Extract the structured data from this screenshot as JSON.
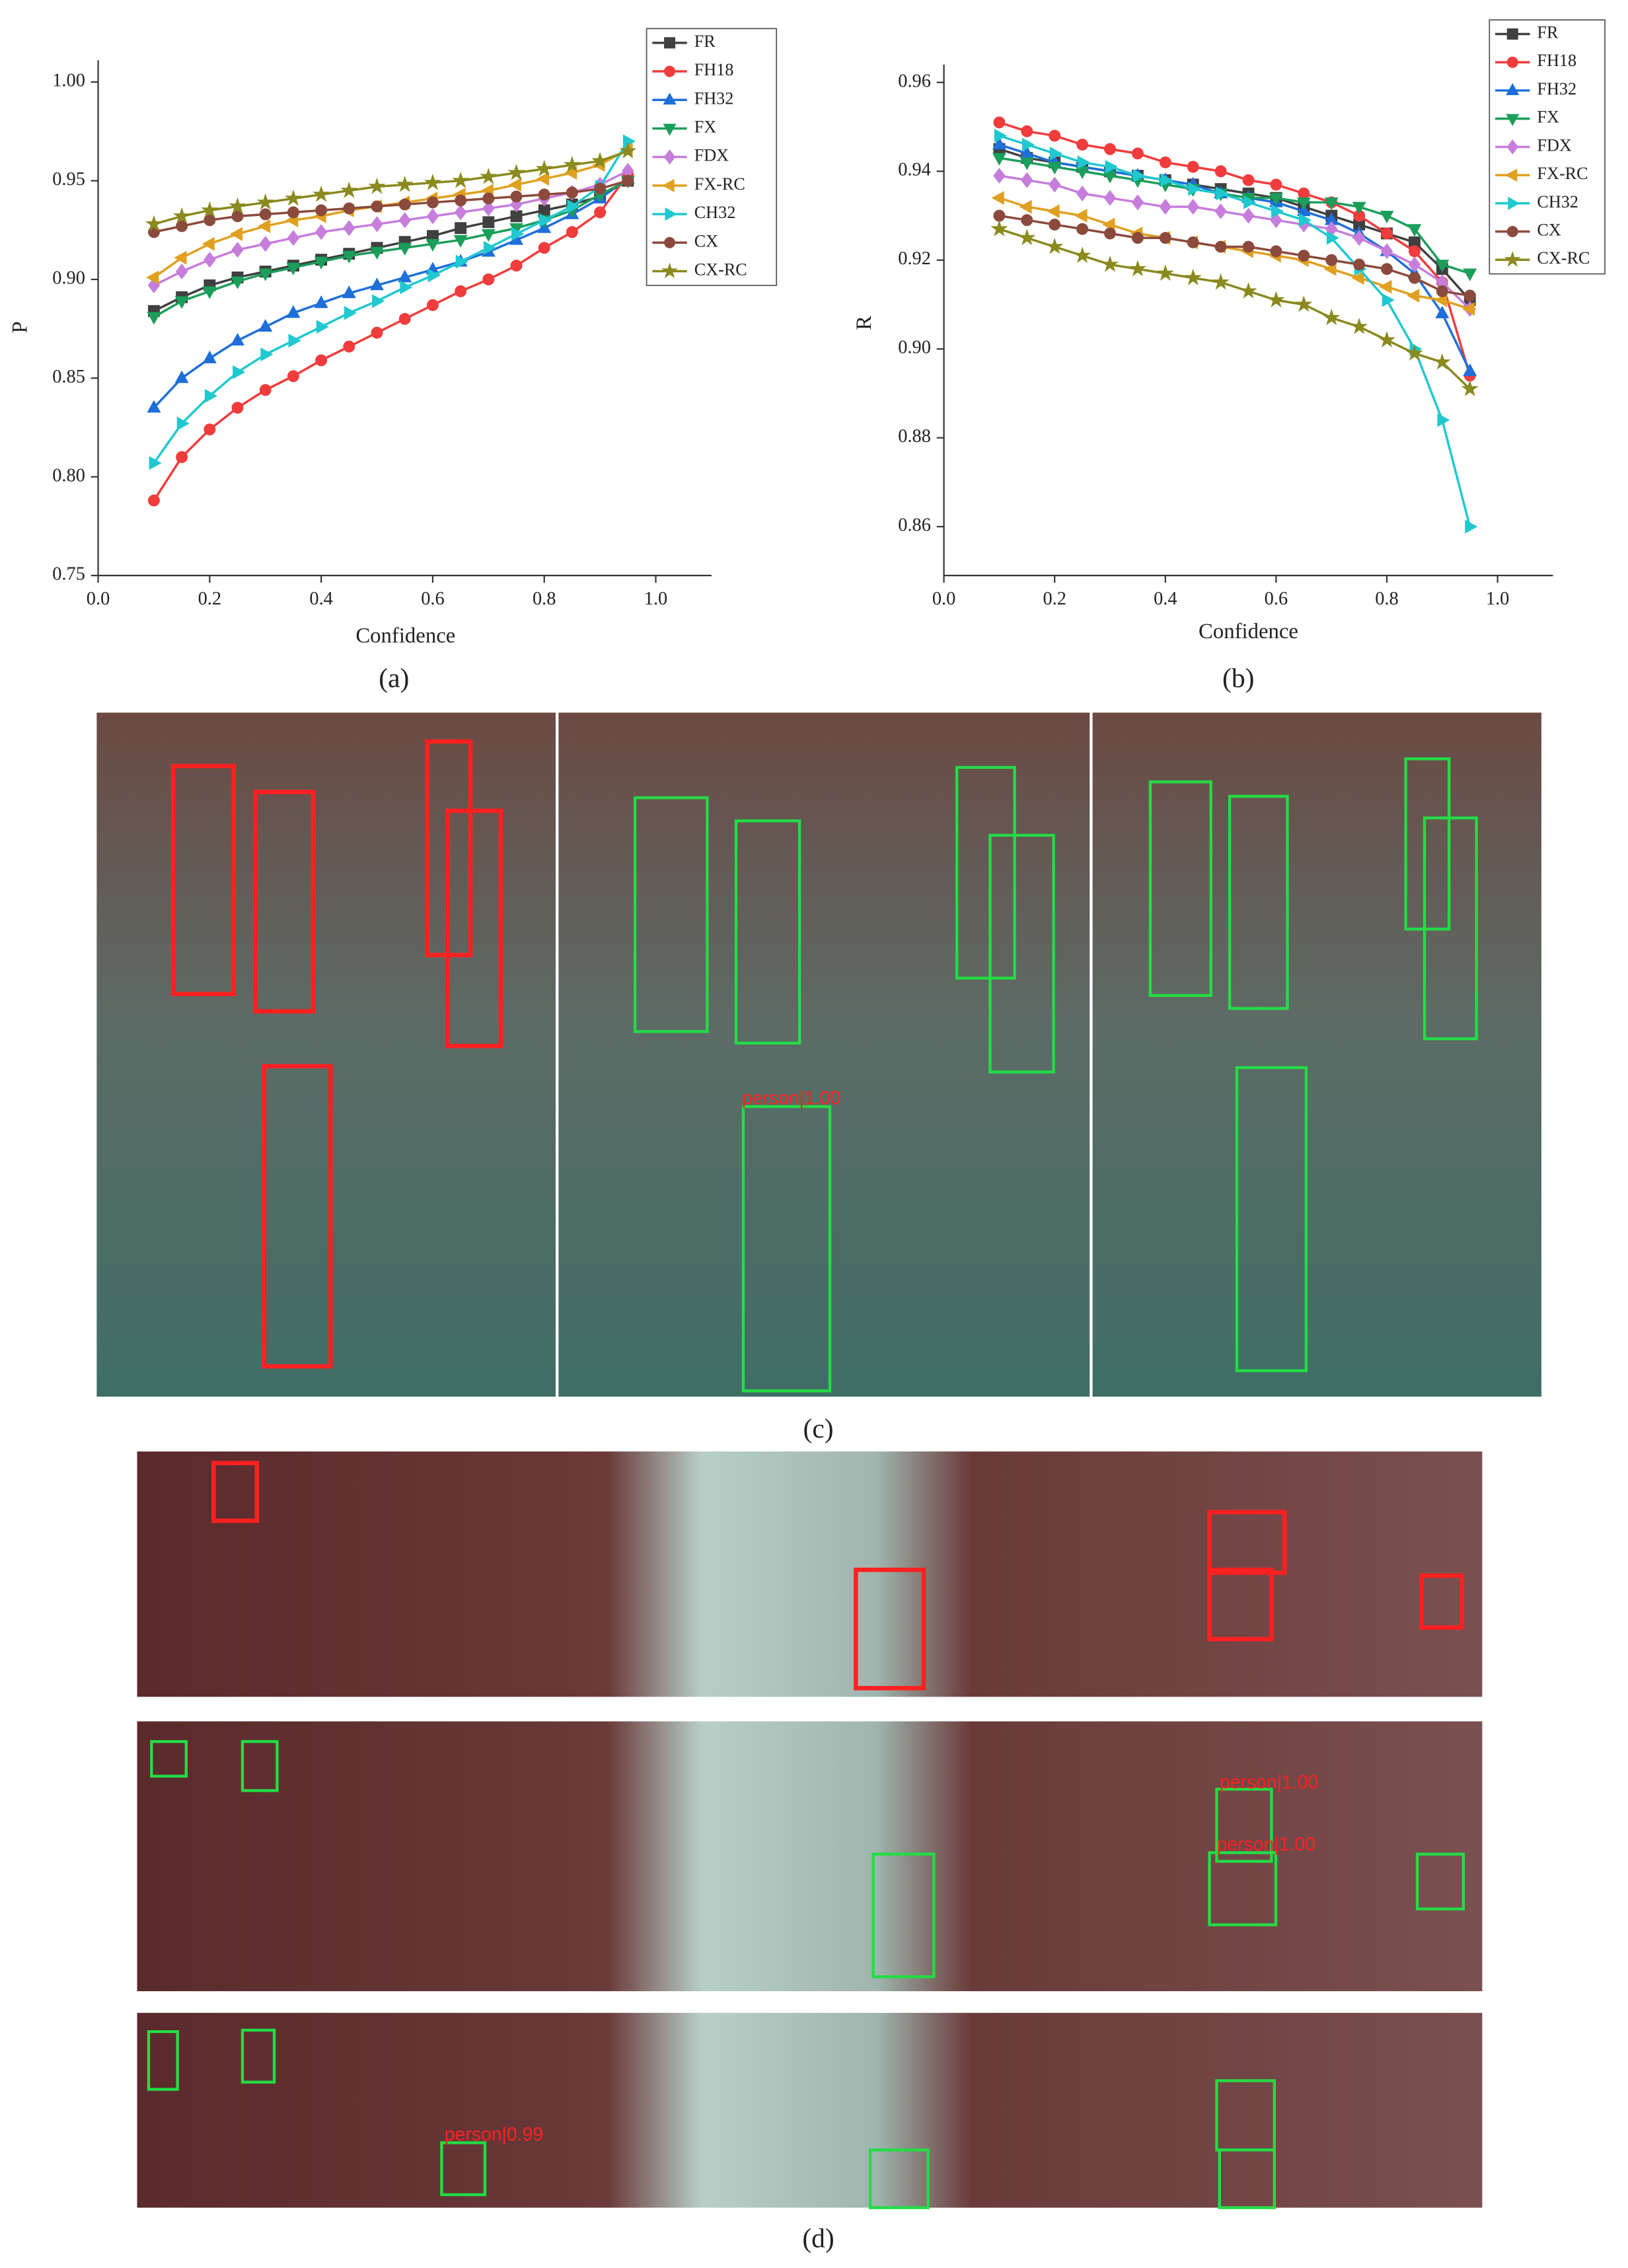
{
  "chart_data": [
    {
      "type": "line",
      "caption": "(a)",
      "x_label": "Confidence",
      "y_label": "P",
      "xlim": [
        0,
        1.1
      ],
      "ylim": [
        0.75,
        1.011
      ],
      "xticks": [
        {
          "value": 0,
          "label": "0.0"
        },
        0.2,
        0.4,
        0.6,
        0.8,
        {
          "value": 1,
          "label": "1.0"
        }
      ],
      "yticks": [
        0.75,
        {
          "value": 0.8,
          "label": "0.80"
        },
        0.85,
        {
          "value": 0.9,
          "label": "0.90"
        },
        0.95,
        {
          "value": 1,
          "label": "1.00"
        }
      ],
      "x": [
        0.1,
        0.15,
        0.2,
        0.25,
        0.3,
        0.35,
        0.4,
        0.45,
        0.5,
        0.55,
        0.6,
        0.65,
        0.7,
        0.75,
        0.8,
        0.85,
        0.9,
        0.95
      ],
      "series": [
        {
          "name": "FR",
          "color": "#404040",
          "marker": "square",
          "values": [
            0.884,
            0.891,
            0.897,
            0.901,
            0.904,
            0.907,
            0.91,
            0.913,
            0.916,
            0.919,
            0.922,
            0.926,
            0.929,
            0.932,
            0.935,
            0.938,
            0.942,
            0.95
          ]
        },
        {
          "name": "FH18",
          "color": "#f03c3c",
          "marker": "circle",
          "values": [
            0.788,
            0.81,
            0.824,
            0.835,
            0.844,
            0.851,
            0.859,
            0.866,
            0.873,
            0.88,
            0.887,
            0.894,
            0.9,
            0.907,
            0.916,
            0.924,
            0.934,
            0.953
          ]
        },
        {
          "name": "FH32",
          "color": "#1e6fd9",
          "marker": "triangle-up",
          "values": [
            0.835,
            0.85,
            0.86,
            0.869,
            0.876,
            0.883,
            0.888,
            0.893,
            0.897,
            0.901,
            0.905,
            0.909,
            0.914,
            0.92,
            0.926,
            0.933,
            0.941,
            0.951
          ]
        },
        {
          "name": "FX",
          "color": "#1a9e5a",
          "marker": "triangle-down",
          "values": [
            0.881,
            0.889,
            0.894,
            0.899,
            0.903,
            0.906,
            0.909,
            0.912,
            0.914,
            0.916,
            0.918,
            0.92,
            0.923,
            0.926,
            0.93,
            0.935,
            0.943,
            0.95
          ]
        },
        {
          "name": "FDX",
          "color": "#c77ddb",
          "marker": "diamond",
          "values": [
            0.897,
            0.904,
            0.91,
            0.915,
            0.918,
            0.921,
            0.924,
            0.926,
            0.928,
            0.93,
            0.932,
            0.934,
            0.936,
            0.938,
            0.941,
            0.944,
            0.948,
            0.955
          ]
        },
        {
          "name": "FX-RC",
          "color": "#e0a020",
          "marker": "triangle-left",
          "values": [
            0.901,
            0.911,
            0.918,
            0.923,
            0.927,
            0.93,
            0.932,
            0.935,
            0.937,
            0.939,
            0.941,
            0.943,
            0.945,
            0.948,
            0.951,
            0.954,
            0.958,
            0.966
          ]
        },
        {
          "name": "CH32",
          "color": "#20c8d0",
          "marker": "triangle-right",
          "values": [
            0.807,
            0.827,
            0.841,
            0.853,
            0.862,
            0.869,
            0.876,
            0.883,
            0.889,
            0.896,
            0.902,
            0.909,
            0.916,
            0.923,
            0.93,
            0.937,
            0.947,
            0.97
          ]
        },
        {
          "name": "CX",
          "color": "#8b4a3c",
          "marker": "circle",
          "values": [
            0.924,
            0.927,
            0.93,
            0.932,
            0.933,
            0.934,
            0.935,
            0.936,
            0.937,
            0.938,
            0.939,
            0.94,
            0.941,
            0.942,
            0.943,
            0.944,
            0.946,
            0.95
          ]
        },
        {
          "name": "CX-RC",
          "color": "#8a8a1e",
          "marker": "star",
          "values": [
            0.928,
            0.932,
            0.935,
            0.937,
            0.939,
            0.941,
            0.943,
            0.945,
            0.947,
            0.948,
            0.949,
            0.95,
            0.952,
            0.954,
            0.956,
            0.958,
            0.96,
            0.965
          ]
        }
      ]
    },
    {
      "type": "line",
      "caption": "(b)",
      "x_label": "Confidence",
      "y_label": "R",
      "xlim": [
        0,
        1.1
      ],
      "ylim": [
        0.849,
        0.964
      ],
      "xticks": [
        {
          "value": 0,
          "label": "0.0"
        },
        0.2,
        0.4,
        0.6,
        0.8,
        {
          "value": 1,
          "label": "1.0"
        }
      ],
      "yticks": [
        0.86,
        0.88,
        {
          "value": 0.9,
          "label": "0.90"
        },
        0.92,
        0.94,
        0.96
      ],
      "x": [
        0.1,
        0.15,
        0.2,
        0.25,
        0.3,
        0.35,
        0.4,
        0.45,
        0.5,
        0.55,
        0.6,
        0.65,
        0.7,
        0.75,
        0.8,
        0.85,
        0.9,
        0.95
      ],
      "series": [
        {
          "name": "FR",
          "color": "#404040",
          "marker": "square",
          "values": [
            0.945,
            0.943,
            0.942,
            0.941,
            0.94,
            0.939,
            0.938,
            0.937,
            0.936,
            0.935,
            0.934,
            0.932,
            0.93,
            0.928,
            0.926,
            0.924,
            0.918,
            0.911
          ]
        },
        {
          "name": "FH18",
          "color": "#f03c3c",
          "marker": "circle",
          "values": [
            0.951,
            0.949,
            0.948,
            0.946,
            0.945,
            0.944,
            0.942,
            0.941,
            0.94,
            0.938,
            0.937,
            0.935,
            0.933,
            0.93,
            0.926,
            0.922,
            0.915,
            0.894
          ]
        },
        {
          "name": "FH32",
          "color": "#1e6fd9",
          "marker": "triangle-up",
          "values": [
            0.946,
            0.944,
            0.942,
            0.941,
            0.94,
            0.939,
            0.938,
            0.937,
            0.935,
            0.934,
            0.933,
            0.931,
            0.929,
            0.926,
            0.922,
            0.917,
            0.908,
            0.895
          ]
        },
        {
          "name": "FX",
          "color": "#1a9e5a",
          "marker": "triangle-down",
          "values": [
            0.943,
            0.942,
            0.941,
            0.94,
            0.939,
            0.938,
            0.937,
            0.936,
            0.935,
            0.934,
            0.934,
            0.933,
            0.933,
            0.932,
            0.93,
            0.927,
            0.919,
            0.917
          ]
        },
        {
          "name": "FDX",
          "color": "#c77ddb",
          "marker": "diamond",
          "values": [
            0.939,
            0.938,
            0.937,
            0.935,
            0.934,
            0.933,
            0.932,
            0.932,
            0.931,
            0.93,
            0.929,
            0.928,
            0.927,
            0.925,
            0.922,
            0.919,
            0.915,
            0.909
          ]
        },
        {
          "name": "FX-RC",
          "color": "#e0a020",
          "marker": "triangle-left",
          "values": [
            0.934,
            0.932,
            0.931,
            0.93,
            0.928,
            0.926,
            0.925,
            0.924,
            0.923,
            0.922,
            0.921,
            0.92,
            0.918,
            0.916,
            0.914,
            0.912,
            0.911,
            0.909
          ]
        },
        {
          "name": "CH32",
          "color": "#20c8d0",
          "marker": "triangle-right",
          "values": [
            0.948,
            0.946,
            0.944,
            0.942,
            0.941,
            0.939,
            0.938,
            0.936,
            0.935,
            0.933,
            0.931,
            0.929,
            0.925,
            0.918,
            0.911,
            0.9,
            0.884,
            0.86
          ]
        },
        {
          "name": "CX",
          "color": "#8b4a3c",
          "marker": "circle",
          "values": [
            0.93,
            0.929,
            0.928,
            0.927,
            0.926,
            0.925,
            0.925,
            0.924,
            0.923,
            0.923,
            0.922,
            0.921,
            0.92,
            0.919,
            0.918,
            0.916,
            0.913,
            0.912
          ]
        },
        {
          "name": "CX-RC",
          "color": "#8a8a1e",
          "marker": "star",
          "values": [
            0.927,
            0.925,
            0.923,
            0.921,
            0.919,
            0.918,
            0.917,
            0.916,
            0.915,
            0.913,
            0.911,
            0.91,
            0.907,
            0.905,
            0.902,
            0.899,
            0.897,
            0.891
          ]
        }
      ]
    }
  ],
  "photos": [
    {
      "caption": "(c)",
      "labels": [
        "person|1.00"
      ]
    },
    {
      "caption": "(d)",
      "labels": [
        "person|1.00",
        "person|1.00",
        "person|0.99"
      ]
    }
  ]
}
